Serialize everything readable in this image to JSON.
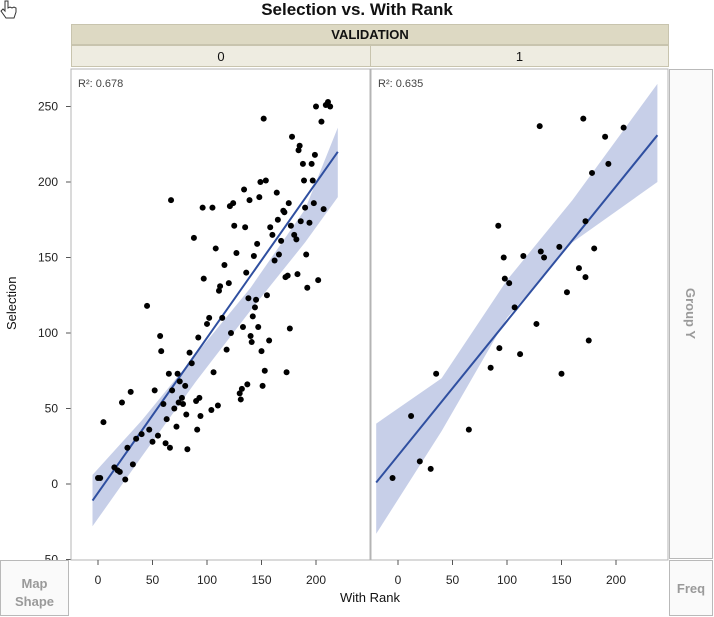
{
  "title": "Selection vs. With Rank",
  "group_x_label": "VALIDATION",
  "group_y_label": "Group Y",
  "map_shape_label": [
    "Map",
    "Shape"
  ],
  "freq_label": "Freq",
  "colors": {
    "points": "#000000",
    "fit_line": "#2f4fa0",
    "band": "#b4bfe0",
    "header": "#ddd9c3",
    "subheader": "#eeece1"
  },
  "chart_data": {
    "type": "scatter",
    "xlabel": "With Rank",
    "ylabel": "Selection",
    "xlim": [
      -20,
      245
    ],
    "ylim": [
      -50,
      265
    ],
    "x_ticks": [
      0,
      50,
      100,
      150,
      200
    ],
    "y_ticks": [
      -50,
      0,
      50,
      100,
      150,
      200,
      250
    ],
    "panels": [
      {
        "level": "0",
        "r2_label": "R²: 0.678",
        "fit": {
          "x0": -5,
          "y0": -11,
          "x1": 220,
          "y1": 220
        },
        "band": [
          [
            -5,
            -28,
            6
          ],
          [
            40,
            18,
            42
          ],
          [
            90,
            68,
            86
          ],
          [
            140,
            115,
            130
          ],
          [
            190,
            160,
            182
          ],
          [
            220,
            190,
            236
          ]
        ],
        "points": [
          [
            0,
            4
          ],
          [
            2,
            4
          ],
          [
            5,
            41
          ],
          [
            15,
            11
          ],
          [
            18,
            9
          ],
          [
            20,
            8
          ],
          [
            22,
            54
          ],
          [
            25,
            3
          ],
          [
            27,
            24
          ],
          [
            30,
            61
          ],
          [
            32,
            13
          ],
          [
            35,
            30
          ],
          [
            40,
            33
          ],
          [
            45,
            118
          ],
          [
            47,
            36
          ],
          [
            50,
            28
          ],
          [
            52,
            62
          ],
          [
            55,
            32
          ],
          [
            57,
            98
          ],
          [
            58,
            88
          ],
          [
            60,
            53
          ],
          [
            62,
            27
          ],
          [
            63,
            43
          ],
          [
            65,
            73
          ],
          [
            66,
            24
          ],
          [
            67,
            188
          ],
          [
            68,
            62
          ],
          [
            70,
            50
          ],
          [
            72,
            38
          ],
          [
            73,
            73
          ],
          [
            74,
            54
          ],
          [
            75,
            68
          ],
          [
            77,
            57
          ],
          [
            78,
            53
          ],
          [
            80,
            65
          ],
          [
            81,
            46
          ],
          [
            82,
            23
          ],
          [
            84,
            87
          ],
          [
            86,
            80
          ],
          [
            88,
            163
          ],
          [
            90,
            55
          ],
          [
            91,
            36
          ],
          [
            92,
            97
          ],
          [
            93,
            57
          ],
          [
            94,
            45
          ],
          [
            96,
            183
          ],
          [
            97,
            136
          ],
          [
            100,
            106
          ],
          [
            102,
            110
          ],
          [
            104,
            49
          ],
          [
            105,
            183
          ],
          [
            106,
            74
          ],
          [
            108,
            156
          ],
          [
            110,
            52
          ],
          [
            111,
            128
          ],
          [
            112,
            131
          ],
          [
            114,
            110
          ],
          [
            116,
            145
          ],
          [
            118,
            89
          ],
          [
            120,
            133
          ],
          [
            121,
            184
          ],
          [
            122,
            100
          ],
          [
            124,
            186
          ],
          [
            125,
            171
          ],
          [
            127,
            153
          ],
          [
            130,
            60
          ],
          [
            131,
            56
          ],
          [
            132,
            63
          ],
          [
            133,
            104
          ],
          [
            134,
            195
          ],
          [
            135,
            170
          ],
          [
            136,
            140
          ],
          [
            137,
            66
          ],
          [
            138,
            123
          ],
          [
            139,
            188
          ],
          [
            140,
            98
          ],
          [
            141,
            94
          ],
          [
            142,
            111
          ],
          [
            143,
            151
          ],
          [
            144,
            117
          ],
          [
            145,
            122
          ],
          [
            146,
            159
          ],
          [
            147,
            104
          ],
          [
            148,
            190
          ],
          [
            149,
            200
          ],
          [
            150,
            88
          ],
          [
            151,
            65
          ],
          [
            152,
            242
          ],
          [
            153,
            75
          ],
          [
            154,
            201
          ],
          [
            155,
            125
          ],
          [
            157,
            95
          ],
          [
            158,
            170
          ],
          [
            160,
            165
          ],
          [
            162,
            148
          ],
          [
            164,
            193
          ],
          [
            165,
            175
          ],
          [
            166,
            152
          ],
          [
            168,
            161
          ],
          [
            170,
            181
          ],
          [
            171,
            180
          ],
          [
            172,
            137
          ],
          [
            173,
            74
          ],
          [
            174,
            138
          ],
          [
            175,
            186
          ],
          [
            176,
            103
          ],
          [
            177,
            171
          ],
          [
            178,
            230
          ],
          [
            180,
            165
          ],
          [
            182,
            162
          ],
          [
            183,
            139
          ],
          [
            184,
            221
          ],
          [
            185,
            224
          ],
          [
            186,
            174
          ],
          [
            188,
            212
          ],
          [
            189,
            201
          ],
          [
            190,
            183
          ],
          [
            191,
            152
          ],
          [
            192,
            130
          ],
          [
            194,
            173
          ],
          [
            196,
            212
          ],
          [
            197,
            201
          ],
          [
            198,
            186
          ],
          [
            199,
            218
          ],
          [
            200,
            250
          ],
          [
            202,
            135
          ],
          [
            205,
            240
          ],
          [
            207,
            182
          ],
          [
            209,
            251
          ],
          [
            211,
            253
          ],
          [
            213,
            250
          ]
        ]
      },
      {
        "level": "1",
        "r2_label": "R²: 0.635",
        "fit": {
          "x0": -20,
          "y0": 1,
          "x1": 238,
          "y1": 231
        },
        "band": [
          [
            -20,
            -33,
            40
          ],
          [
            40,
            35,
            70
          ],
          [
            100,
            110,
            135
          ],
          [
            160,
            160,
            188
          ],
          [
            238,
            200,
            265
          ]
        ],
        "points": [
          [
            -5,
            4
          ],
          [
            12,
            45
          ],
          [
            20,
            15
          ],
          [
            30,
            10
          ],
          [
            35,
            73
          ],
          [
            65,
            36
          ],
          [
            85,
            77
          ],
          [
            92,
            171
          ],
          [
            93,
            90
          ],
          [
            97,
            150
          ],
          [
            98,
            136
          ],
          [
            102,
            133
          ],
          [
            107,
            117
          ],
          [
            112,
            86
          ],
          [
            115,
            151
          ],
          [
            127,
            106
          ],
          [
            130,
            237
          ],
          [
            131,
            154
          ],
          [
            134,
            150
          ],
          [
            148,
            157
          ],
          [
            150,
            73
          ],
          [
            155,
            127
          ],
          [
            166,
            143
          ],
          [
            170,
            242
          ],
          [
            172,
            174
          ],
          [
            175,
            95
          ],
          [
            178,
            206
          ],
          [
            180,
            156
          ],
          [
            190,
            230
          ],
          [
            193,
            212
          ],
          [
            207,
            236
          ],
          [
            172,
            137
          ]
        ]
      }
    ]
  }
}
